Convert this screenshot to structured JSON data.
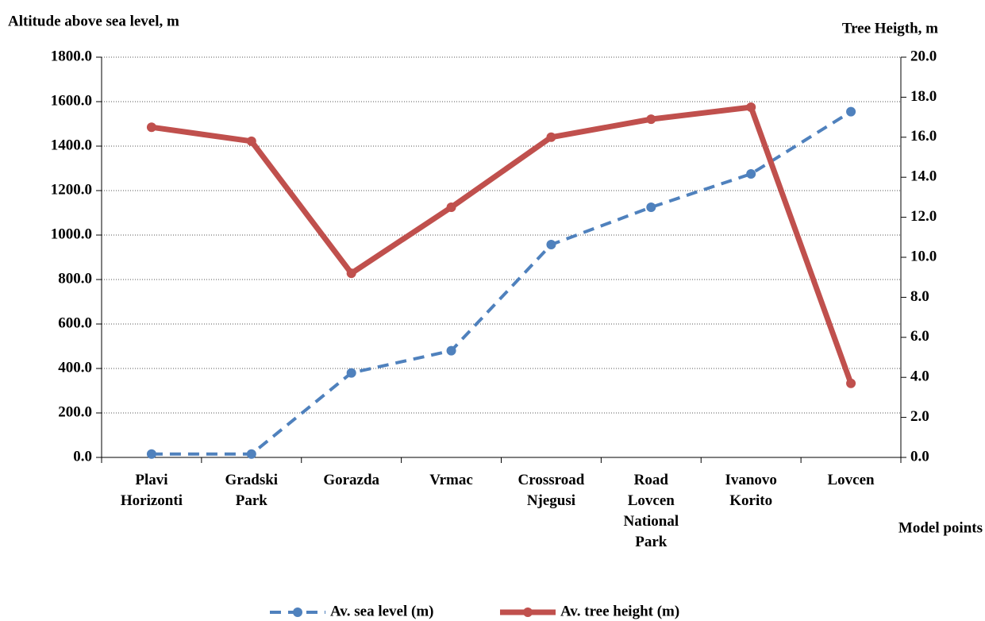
{
  "chart_data": {
    "type": "line",
    "y_label": "Altitude above sea level, m",
    "y2_label": "Tree Heigth, m",
    "x_label": "Model points",
    "categories": [
      "Plavi Horizonti",
      "Gradski Park",
      "Gorazda",
      "Vrmac",
      "Crossroad Njegusi",
      "Road Lovcen National Park",
      "Ivanovo Korito",
      "Lovcen"
    ],
    "series": [
      {
        "name": "Av. sea level (m)",
        "color": "#4f81bd",
        "dashed": true,
        "values": [
          15,
          15,
          380,
          480,
          957,
          1125,
          1275,
          1555
        ]
      },
      {
        "name": "Av. tree height (m)",
        "color": "#c0504d",
        "axis": "y2",
        "values": [
          16.5,
          15.8,
          9.2,
          12.5,
          16.0,
          16.9,
          17.5,
          3.7
        ]
      }
    ],
    "ylim": [
      0,
      1800
    ],
    "yticks": [
      {
        "value": 0,
        "label": "0.0"
      },
      {
        "value": 200,
        "label": "200.0"
      },
      {
        "value": 400,
        "label": "400.0"
      },
      {
        "value": 600,
        "label": "600.0"
      },
      {
        "value": 800,
        "label": "800.0"
      },
      {
        "value": 1000,
        "label": "1000.0"
      },
      {
        "value": 1200,
        "label": "1200.0"
      },
      {
        "value": 1400,
        "label": "1400.0"
      },
      {
        "value": 1600,
        "label": "1600.0"
      },
      {
        "value": 1800,
        "label": "1800.0"
      }
    ],
    "y2lim": [
      0,
      20
    ],
    "y2ticks": [
      {
        "value": 0,
        "label": "0.0"
      },
      {
        "value": 2,
        "label": "2.0"
      },
      {
        "value": 4,
        "label": "4.0"
      },
      {
        "value": 6,
        "label": "6.0"
      },
      {
        "value": 8,
        "label": "8.0"
      },
      {
        "value": 10,
        "label": "10.0"
      },
      {
        "value": 12,
        "label": "12.0"
      },
      {
        "value": 14,
        "label": "14.0"
      },
      {
        "value": 16,
        "label": "16.0"
      },
      {
        "value": 18,
        "label": "18.0"
      },
      {
        "value": 20,
        "label": "20.0"
      }
    ],
    "grid": true,
    "legend": "bottom"
  }
}
